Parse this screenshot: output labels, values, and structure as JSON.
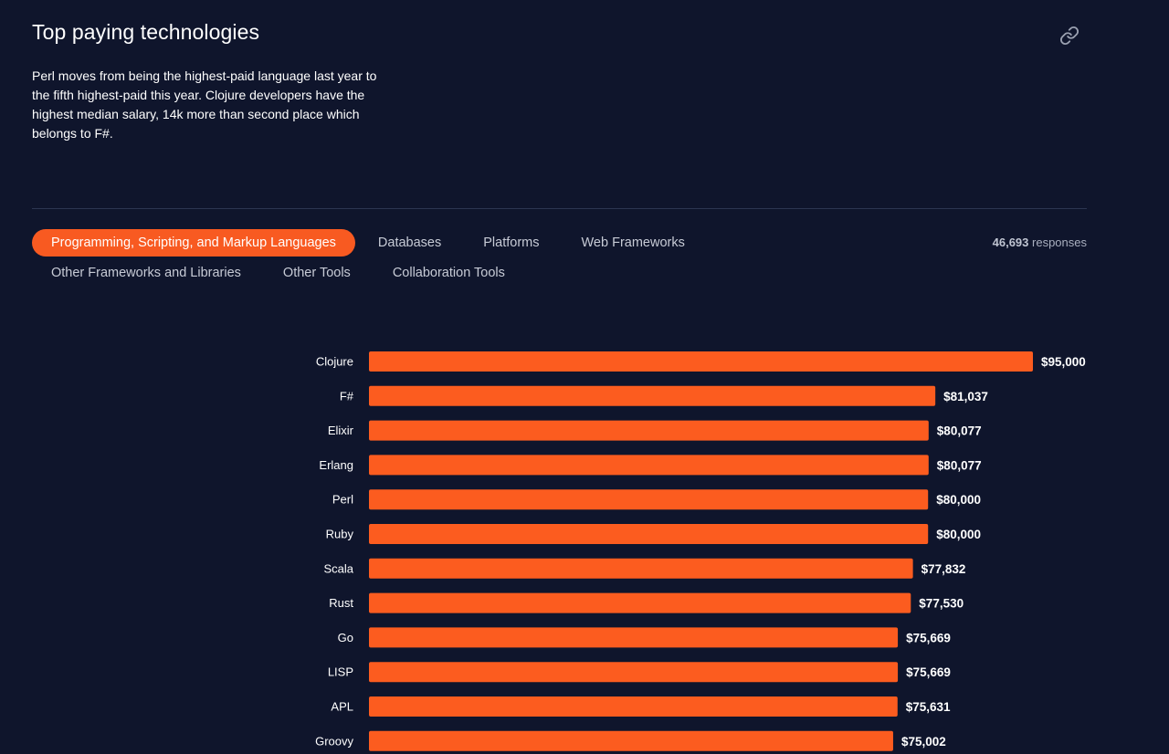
{
  "header": {
    "title": "Top paying technologies",
    "link_icon": "link-icon",
    "description": "Perl moves from being the highest-paid language last year to the fifth highest-paid this year. Clojure developers have the highest median salary, 14k more than second place which belongs to F#."
  },
  "tabs": [
    {
      "label": "Programming, Scripting, and Markup Languages",
      "active": true
    },
    {
      "label": "Databases",
      "active": false
    },
    {
      "label": "Platforms",
      "active": false
    },
    {
      "label": "Web Frameworks",
      "active": false
    },
    {
      "label": "Other Frameworks and Libraries",
      "active": false
    },
    {
      "label": "Other Tools",
      "active": false
    },
    {
      "label": "Collaboration Tools",
      "active": false
    }
  ],
  "responses": {
    "count": "46,693",
    "label": "responses"
  },
  "colors": {
    "background": "#0f152c",
    "accent": "#f85a21",
    "bar": "#fc5c1f"
  },
  "chart_data": {
    "type": "bar",
    "orientation": "horizontal",
    "categories": [
      "Clojure",
      "F#",
      "Elixir",
      "Erlang",
      "Perl",
      "Ruby",
      "Scala",
      "Rust",
      "Go",
      "LISP",
      "APL",
      "Groovy"
    ],
    "values": [
      95000,
      81037,
      80077,
      80077,
      80000,
      80000,
      77832,
      77530,
      75669,
      75669,
      75631,
      75002
    ],
    "value_labels": [
      "$95,000",
      "$81,037",
      "$80,077",
      "$80,077",
      "$80,000",
      "$80,000",
      "$77,832",
      "$77,530",
      "$75,669",
      "$75,669",
      "$75,631",
      "$75,002"
    ],
    "xlim": [
      0,
      95000
    ],
    "grid": false,
    "legend": "none"
  }
}
